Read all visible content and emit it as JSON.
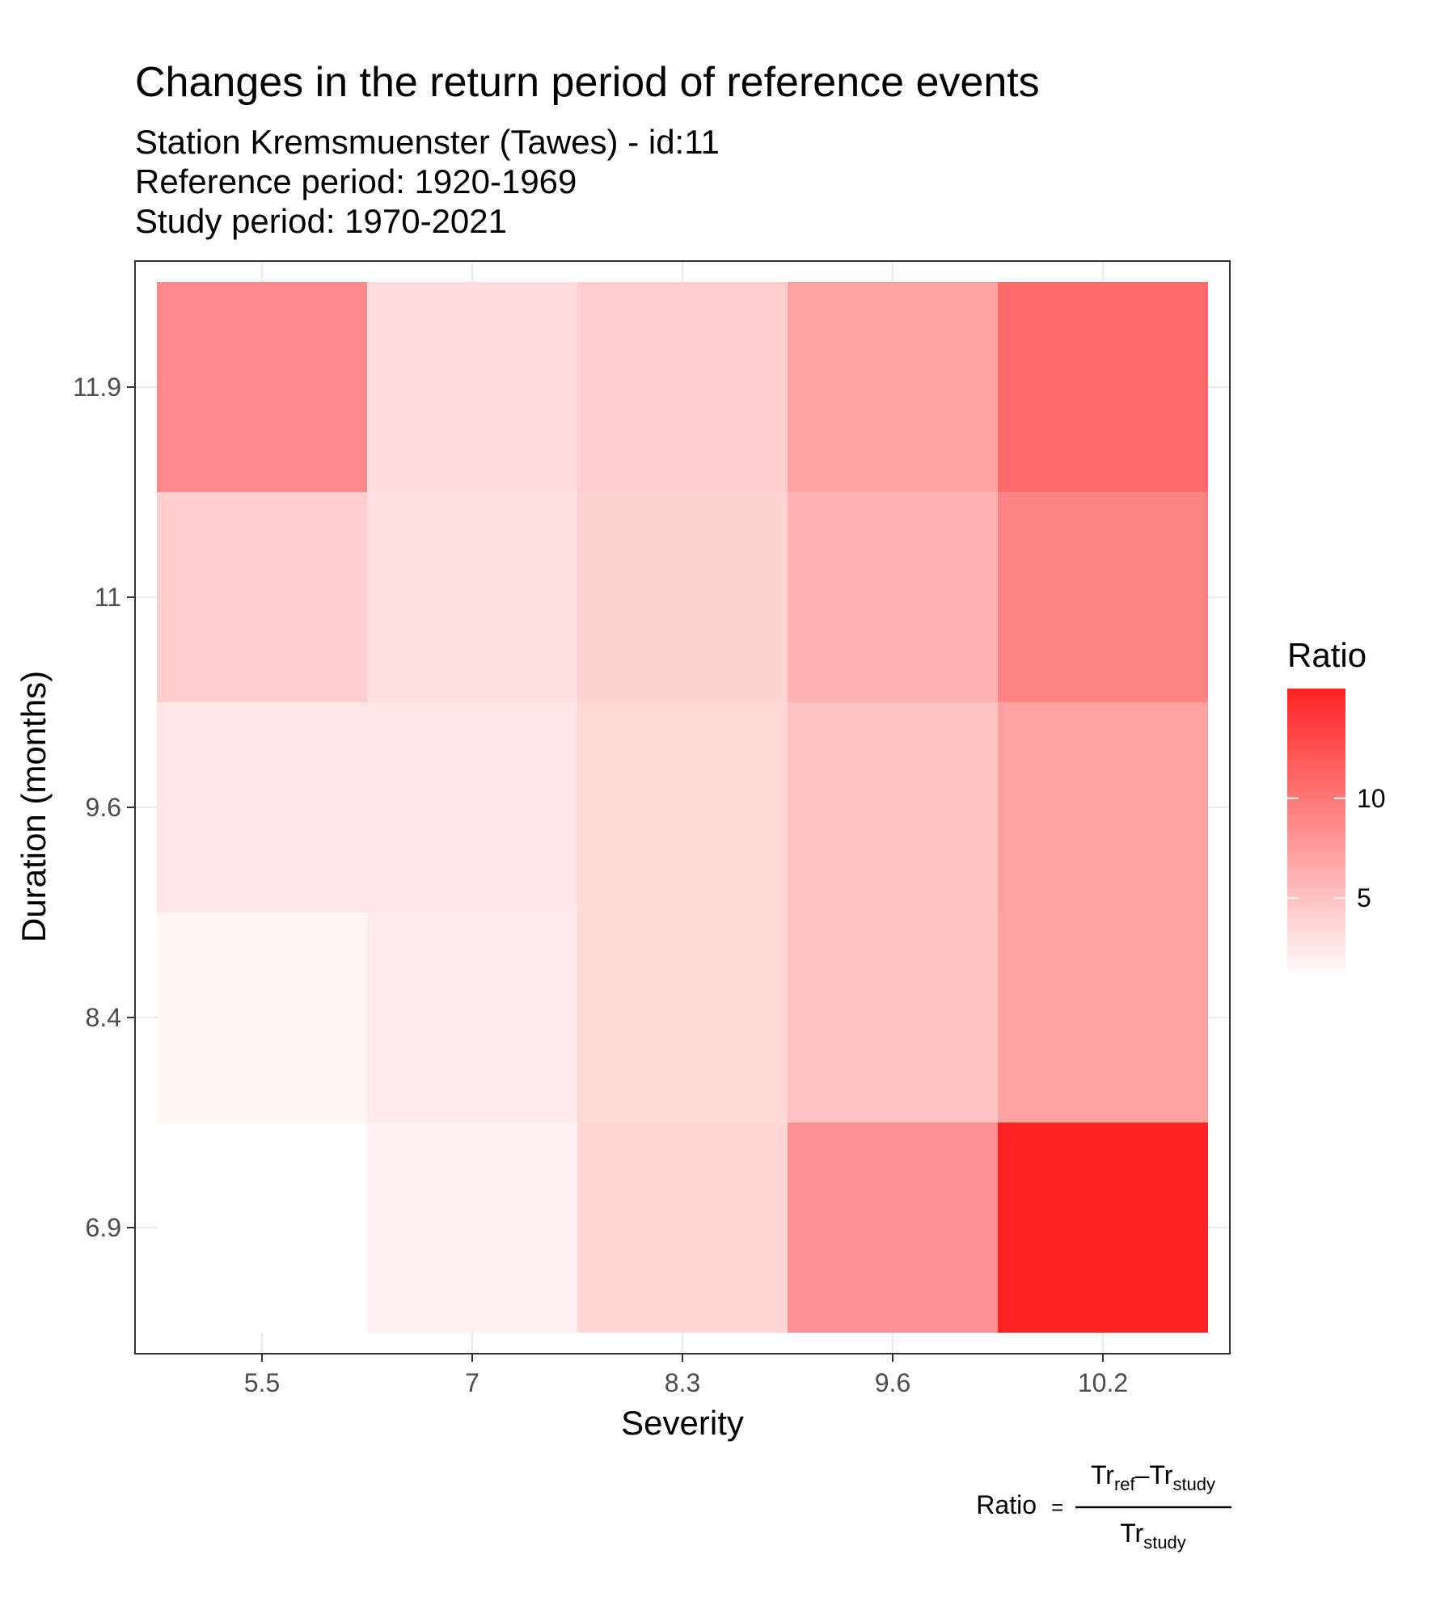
{
  "title": "Changes in the return period of reference events",
  "subtitle_lines": [
    "Station Kremsmuenster (Tawes) - id:11",
    "Reference period: 1920-1969",
    "Study period: 1970-2021"
  ],
  "caption": {
    "lhs": "Ratio",
    "equals": "=",
    "num_tr1": "Tr",
    "num_sub1": "ref",
    "minus": "–",
    "num_tr2": "Tr",
    "num_sub2": "study",
    "den_tr": "Tr",
    "den_sub": "study"
  },
  "chart_data": {
    "type": "heatmap",
    "xlabel": "Severity",
    "ylabel": "Duration (months)",
    "x_categories": [
      "5.5",
      "7",
      "8.3",
      "9.6",
      "10.2"
    ],
    "y_categories": [
      "6.9",
      "8.4",
      "9.6",
      "11",
      "11.9"
    ],
    "values": [
      [
        1.0,
        1.9,
        3.8,
        8.2,
        15.5
      ],
      [
        1.6,
        2.4,
        3.6,
        5.0,
        7.1
      ],
      [
        2.6,
        2.6,
        3.6,
        5.1,
        7.2
      ],
      [
        4.2,
        3.1,
        3.9,
        6.1,
        9.2
      ],
      [
        8.7,
        3.4,
        4.2,
        7.2,
        10.8
      ]
    ],
    "legend": {
      "title": "Ratio",
      "min": 1.0,
      "max": 15.5,
      "ticks": [
        5,
        10
      ],
      "low_color": "#ffffff",
      "high_color": "#ff2323",
      "placement": "right"
    },
    "grid": true
  }
}
